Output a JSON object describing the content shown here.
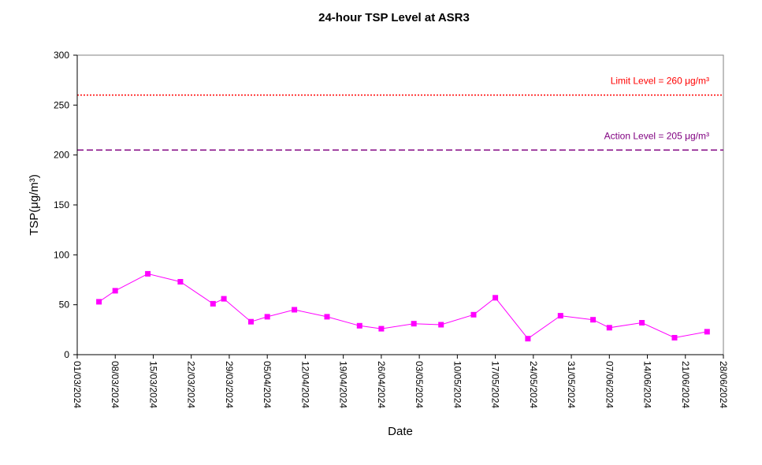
{
  "chart_data": {
    "type": "line",
    "title": "24-hour TSP Level at ASR3",
    "xlabel": "Date",
    "ylabel": "TSP(μg/m³)",
    "ylim": [
      0,
      300
    ],
    "yticks": [
      0,
      50,
      100,
      150,
      200,
      250,
      300
    ],
    "xlim": [
      "2024-03-01",
      "2024-06-28"
    ],
    "xtick_dates": [
      "2024-03-01",
      "2024-03-08",
      "2024-03-15",
      "2024-03-22",
      "2024-03-29",
      "2024-04-05",
      "2024-04-12",
      "2024-04-19",
      "2024-04-26",
      "2024-05-03",
      "2024-05-10",
      "2024-05-17",
      "2024-05-24",
      "2024-05-31",
      "2024-06-07",
      "2024-06-14",
      "2024-06-21",
      "2024-06-28"
    ],
    "xtick_labels": [
      "01/03/2024",
      "08/03/2024",
      "15/03/2024",
      "22/03/2024",
      "29/03/2024",
      "05/04/2024",
      "12/04/2024",
      "19/04/2024",
      "26/04/2024",
      "03/05/2024",
      "10/05/2024",
      "17/05/2024",
      "24/05/2024",
      "31/05/2024",
      "07/06/2024",
      "14/06/2024",
      "21/06/2024",
      "28/06/2024"
    ],
    "series": [
      {
        "color": "#ff00ff",
        "marker": "square",
        "x": [
          "2024-03-05",
          "2024-03-08",
          "2024-03-14",
          "2024-03-20",
          "2024-03-26",
          "2024-03-28",
          "2024-04-02",
          "2024-04-05",
          "2024-04-10",
          "2024-04-16",
          "2024-04-22",
          "2024-04-26",
          "2024-05-02",
          "2024-05-07",
          "2024-05-13",
          "2024-05-17",
          "2024-05-23",
          "2024-05-29",
          "2024-06-04",
          "2024-06-07",
          "2024-06-13",
          "2024-06-19",
          "2024-06-25"
        ],
        "values": [
          53,
          64,
          81,
          73,
          51,
          56,
          33,
          38,
          45,
          38,
          29,
          26,
          31,
          30,
          40,
          57,
          16,
          39,
          35,
          27,
          32,
          17,
          23
        ]
      }
    ],
    "reference_lines": [
      {
        "label": "Limit Level  = 260 μg/m³",
        "value": 260,
        "color": "#ff0000",
        "style": "dotted"
      },
      {
        "label": "Action Level  = 205 μg/m³",
        "value": 205,
        "color": "#800080",
        "style": "dashed"
      }
    ],
    "grid": false,
    "legend": "none"
  }
}
